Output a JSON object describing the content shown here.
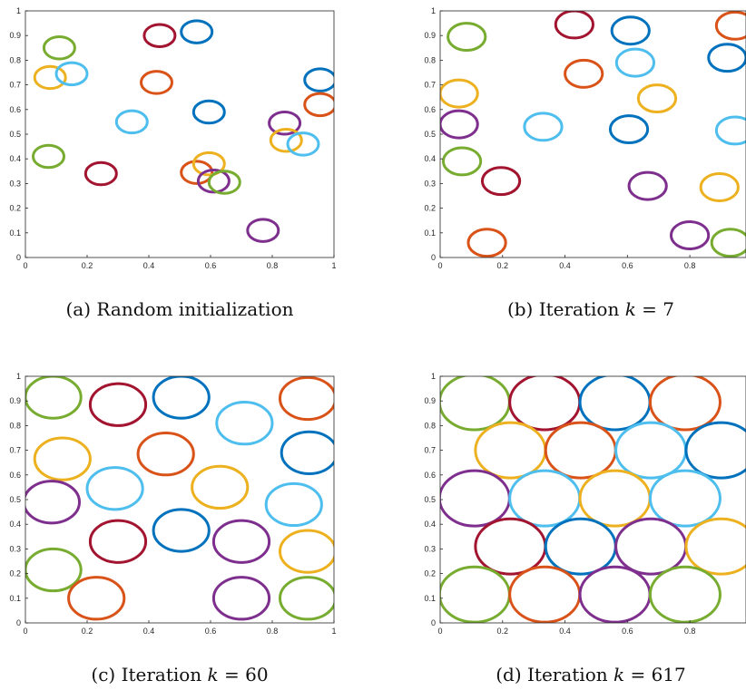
{
  "colors": {
    "green": "#77AC30",
    "crimson": "#A2142F",
    "blue": "#0072BD",
    "orange": "#D95319",
    "cyan": "#4DBEEE",
    "yellow": "#EDB120",
    "purple": "#7E2F8E"
  },
  "chart_data": [
    {
      "type": "scatter",
      "caption": {
        "prefix": "(a) Random initialization",
        "math": "",
        "suffix": ""
      },
      "xlim": [
        0,
        1
      ],
      "ylim": [
        0,
        1
      ],
      "xticks": [
        0,
        0.2,
        0.4,
        0.6,
        0.8,
        1
      ],
      "xtick_labels": [
        "0",
        "0.2",
        "0.4",
        "0.6",
        "0.8",
        "1"
      ],
      "yticks": [
        0,
        0.1,
        0.2,
        0.3,
        0.4,
        0.5,
        0.6,
        0.7,
        0.8,
        0.9,
        1
      ],
      "ytick_labels": [
        "0",
        "0.1",
        "0.2",
        "0.3",
        "0.4",
        "0.5",
        "0.6",
        "0.7",
        "0.8",
        "0.9",
        "1"
      ],
      "radius": [
        0.05,
        0.045
      ],
      "grid": false,
      "circles": [
        {
          "x": 0.11,
          "y": 0.85,
          "color": "green"
        },
        {
          "x": 0.08,
          "y": 0.73,
          "color": "yellow"
        },
        {
          "x": 0.15,
          "y": 0.745,
          "color": "cyan"
        },
        {
          "x": 0.075,
          "y": 0.41,
          "color": "green"
        },
        {
          "x": 0.245,
          "y": 0.34,
          "color": "crimson"
        },
        {
          "x": 0.345,
          "y": 0.55,
          "color": "cyan"
        },
        {
          "x": 0.435,
          "y": 0.9,
          "color": "crimson"
        },
        {
          "x": 0.425,
          "y": 0.71,
          "color": "orange"
        },
        {
          "x": 0.555,
          "y": 0.915,
          "color": "blue"
        },
        {
          "x": 0.595,
          "y": 0.59,
          "color": "blue"
        },
        {
          "x": 0.555,
          "y": 0.345,
          "color": "orange"
        },
        {
          "x": 0.595,
          "y": 0.38,
          "color": "yellow"
        },
        {
          "x": 0.61,
          "y": 0.31,
          "color": "purple"
        },
        {
          "x": 0.645,
          "y": 0.305,
          "color": "green"
        },
        {
          "x": 0.77,
          "y": 0.11,
          "color": "purple"
        },
        {
          "x": 0.84,
          "y": 0.545,
          "color": "purple"
        },
        {
          "x": 0.845,
          "y": 0.475,
          "color": "yellow"
        },
        {
          "x": 0.9,
          "y": 0.46,
          "color": "cyan"
        },
        {
          "x": 0.955,
          "y": 0.72,
          "color": "blue"
        },
        {
          "x": 0.955,
          "y": 0.62,
          "color": "orange"
        }
      ]
    },
    {
      "type": "scatter",
      "caption": {
        "prefix": "(b) Iteration ",
        "math": "k",
        "suffix": " = 7"
      },
      "xlim": [
        0,
        0.98
      ],
      "ylim": [
        0,
        1
      ],
      "xticks": [
        0,
        0.2,
        0.4,
        0.6,
        0.8
      ],
      "xtick_labels": [
        "0",
        "0.2",
        "0.4",
        "0.6",
        "0.8"
      ],
      "yticks": [
        0,
        0.1,
        0.2,
        0.3,
        0.4,
        0.5,
        0.6,
        0.7,
        0.8,
        0.9,
        1
      ],
      "ytick_labels": [
        "0",
        "0.1",
        "0.2",
        "0.3",
        "0.4",
        "0.5",
        "0.6",
        "0.7",
        "0.8",
        "0.9",
        "1"
      ],
      "radius": [
        0.06,
        0.055
      ],
      "grid": false,
      "circles": [
        {
          "x": 0.085,
          "y": 0.895,
          "color": "green"
        },
        {
          "x": 0.06,
          "y": 0.665,
          "color": "yellow"
        },
        {
          "x": 0.06,
          "y": 0.54,
          "color": "purple"
        },
        {
          "x": 0.07,
          "y": 0.39,
          "color": "green"
        },
        {
          "x": 0.195,
          "y": 0.31,
          "color": "crimson"
        },
        {
          "x": 0.15,
          "y": 0.06,
          "color": "orange"
        },
        {
          "x": 0.33,
          "y": 0.53,
          "color": "cyan"
        },
        {
          "x": 0.43,
          "y": 0.945,
          "color": "crimson"
        },
        {
          "x": 0.46,
          "y": 0.745,
          "color": "orange"
        },
        {
          "x": 0.61,
          "y": 0.92,
          "color": "blue"
        },
        {
          "x": 0.625,
          "y": 0.79,
          "color": "cyan"
        },
        {
          "x": 0.695,
          "y": 0.645,
          "color": "yellow"
        },
        {
          "x": 0.605,
          "y": 0.52,
          "color": "blue"
        },
        {
          "x": 0.665,
          "y": 0.29,
          "color": "purple"
        },
        {
          "x": 0.8,
          "y": 0.09,
          "color": "purple"
        },
        {
          "x": 0.895,
          "y": 0.285,
          "color": "yellow"
        },
        {
          "x": 0.93,
          "y": 0.06,
          "color": "green"
        },
        {
          "x": 0.92,
          "y": 0.81,
          "color": "blue"
        },
        {
          "x": 0.945,
          "y": 0.94,
          "color": "orange"
        },
        {
          "x": 0.945,
          "y": 0.515,
          "color": "cyan"
        }
      ]
    },
    {
      "type": "scatter",
      "caption": {
        "prefix": "(c) Iteration ",
        "math": "k",
        "suffix": " = 60"
      },
      "xlim": [
        0,
        1
      ],
      "ylim": [
        0,
        1
      ],
      "xticks": [
        0,
        0.2,
        0.4,
        0.6,
        0.8,
        1
      ],
      "xtick_labels": [
        "0",
        "0.2",
        "0.4",
        "0.6",
        "0.8",
        "1"
      ],
      "yticks": [
        0,
        0.1,
        0.2,
        0.3,
        0.4,
        0.5,
        0.6,
        0.7,
        0.8,
        0.9,
        1
      ],
      "ytick_labels": [
        "0",
        "0.1",
        "0.2",
        "0.3",
        "0.4",
        "0.5",
        "0.6",
        "0.7",
        "0.8",
        "0.9",
        "1"
      ],
      "radius": [
        0.09,
        0.085
      ],
      "grid": false,
      "circles": [
        {
          "x": 0.09,
          "y": 0.915,
          "color": "green"
        },
        {
          "x": 0.3,
          "y": 0.885,
          "color": "crimson"
        },
        {
          "x": 0.505,
          "y": 0.915,
          "color": "blue"
        },
        {
          "x": 0.71,
          "y": 0.81,
          "color": "cyan"
        },
        {
          "x": 0.915,
          "y": 0.91,
          "color": "orange"
        },
        {
          "x": 0.12,
          "y": 0.665,
          "color": "yellow"
        },
        {
          "x": 0.455,
          "y": 0.685,
          "color": "orange"
        },
        {
          "x": 0.92,
          "y": 0.69,
          "color": "blue"
        },
        {
          "x": 0.085,
          "y": 0.49,
          "color": "purple"
        },
        {
          "x": 0.29,
          "y": 0.545,
          "color": "cyan"
        },
        {
          "x": 0.63,
          "y": 0.55,
          "color": "yellow"
        },
        {
          "x": 0.87,
          "y": 0.48,
          "color": "cyan"
        },
        {
          "x": 0.505,
          "y": 0.375,
          "color": "blue"
        },
        {
          "x": 0.3,
          "y": 0.33,
          "color": "crimson"
        },
        {
          "x": 0.7,
          "y": 0.33,
          "color": "purple"
        },
        {
          "x": 0.915,
          "y": 0.29,
          "color": "yellow"
        },
        {
          "x": 0.09,
          "y": 0.215,
          "color": "green"
        },
        {
          "x": 0.23,
          "y": 0.1,
          "color": "orange"
        },
        {
          "x": 0.7,
          "y": 0.1,
          "color": "purple"
        },
        {
          "x": 0.915,
          "y": 0.1,
          "color": "green"
        }
      ]
    },
    {
      "type": "scatter",
      "caption": {
        "prefix": "(d) Iteration ",
        "math": "k",
        "suffix": " = 617"
      },
      "xlim": [
        0,
        0.98
      ],
      "ylim": [
        0,
        1
      ],
      "xticks": [
        0,
        0.2,
        0.4,
        0.6,
        0.8
      ],
      "xtick_labels": [
        "0",
        "0.2",
        "0.4",
        "0.6",
        "0.8"
      ],
      "yticks": [
        0,
        0.1,
        0.2,
        0.3,
        0.4,
        0.5,
        0.6,
        0.7,
        0.8,
        0.9,
        1
      ],
      "ytick_labels": [
        "0",
        "0.1",
        "0.2",
        "0.3",
        "0.4",
        "0.5",
        "0.6",
        "0.7",
        "0.8",
        "0.9",
        "1"
      ],
      "radius": [
        0.112,
        0.112
      ],
      "grid": false,
      "circles": [
        {
          "x": 0.11,
          "y": 0.895,
          "color": "green"
        },
        {
          "x": 0.335,
          "y": 0.895,
          "color": "crimson"
        },
        {
          "x": 0.56,
          "y": 0.895,
          "color": "blue"
        },
        {
          "x": 0.785,
          "y": 0.895,
          "color": "orange"
        },
        {
          "x": 0.225,
          "y": 0.7,
          "color": "yellow"
        },
        {
          "x": 0.45,
          "y": 0.7,
          "color": "orange"
        },
        {
          "x": 0.675,
          "y": 0.7,
          "color": "cyan"
        },
        {
          "x": 0.9,
          "y": 0.7,
          "color": "blue"
        },
        {
          "x": 0.11,
          "y": 0.505,
          "color": "purple"
        },
        {
          "x": 0.335,
          "y": 0.505,
          "color": "cyan"
        },
        {
          "x": 0.56,
          "y": 0.505,
          "color": "yellow"
        },
        {
          "x": 0.785,
          "y": 0.505,
          "color": "cyan"
        },
        {
          "x": 0.225,
          "y": 0.31,
          "color": "crimson"
        },
        {
          "x": 0.45,
          "y": 0.31,
          "color": "blue"
        },
        {
          "x": 0.675,
          "y": 0.31,
          "color": "purple"
        },
        {
          "x": 0.9,
          "y": 0.31,
          "color": "yellow"
        },
        {
          "x": 0.11,
          "y": 0.115,
          "color": "green"
        },
        {
          "x": 0.335,
          "y": 0.115,
          "color": "orange"
        },
        {
          "x": 0.56,
          "y": 0.115,
          "color": "purple"
        },
        {
          "x": 0.785,
          "y": 0.115,
          "color": "green"
        }
      ]
    }
  ]
}
